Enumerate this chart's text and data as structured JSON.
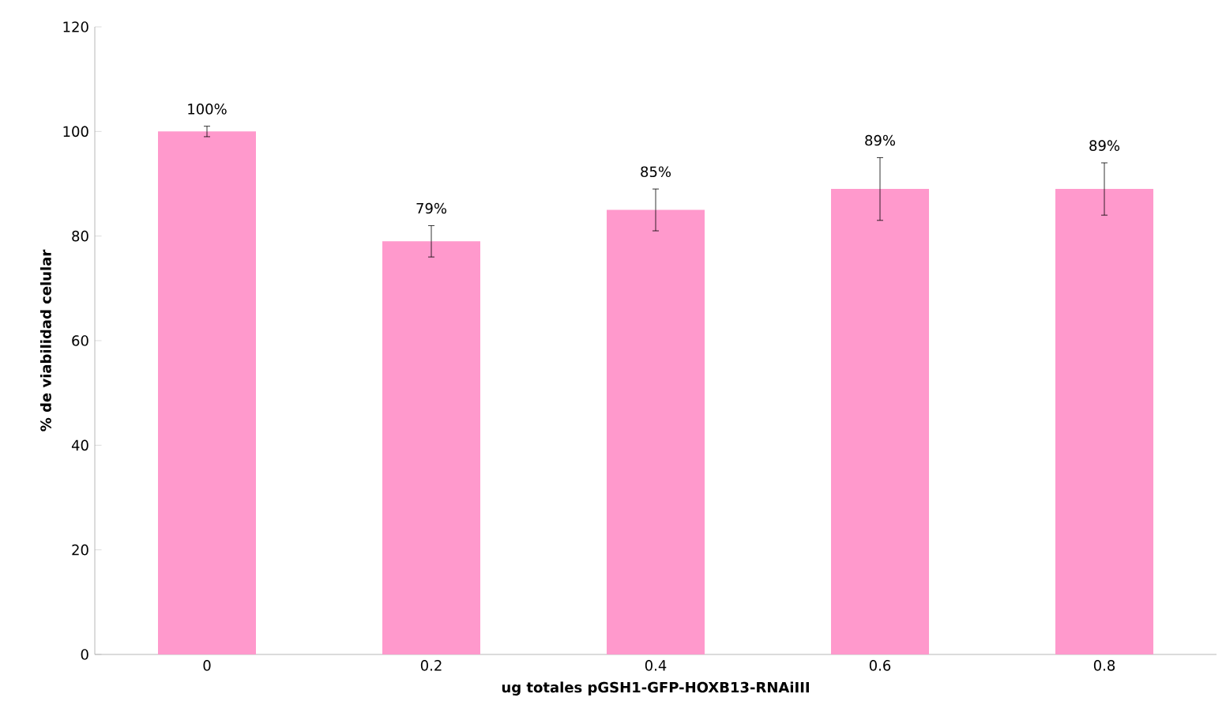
{
  "chart_data": {
    "type": "bar",
    "xlabel": "ug totales pGSH1-GFP-HOXB13-RNAiIII",
    "ylabel": "% de viabilidad celular",
    "categories": [
      "0",
      "0.2",
      "0.4",
      "0.6",
      "0.8"
    ],
    "values": [
      100,
      79,
      85,
      89,
      89
    ],
    "errors": [
      1,
      3,
      4,
      6,
      5
    ],
    "value_labels": [
      "100%",
      "79%",
      "85%",
      "89%",
      "89%"
    ],
    "color": "#ff99cc",
    "ylim": [
      0,
      120
    ],
    "yticks": [
      0,
      20,
      40,
      60,
      80,
      100,
      120
    ],
    "grid": false
  }
}
